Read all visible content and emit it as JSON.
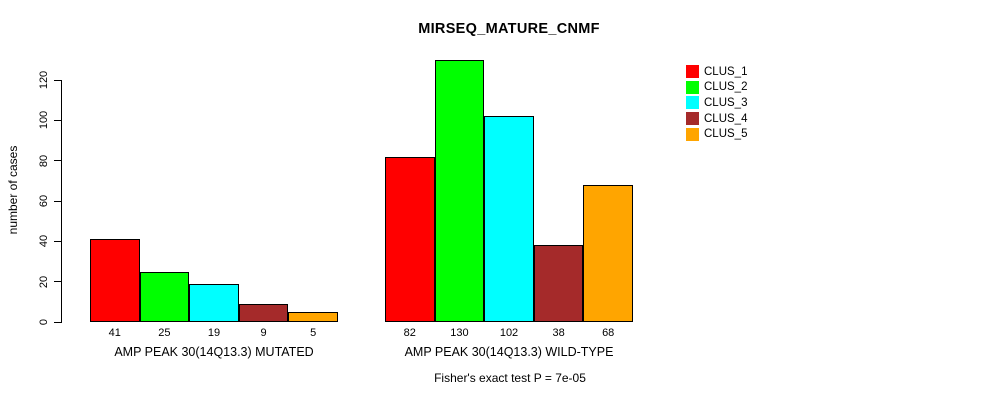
{
  "title": "MIRSEQ_MATURE_CNMF",
  "annotation": "Fisher's exact test P = 7e-05",
  "y_axis": {
    "label": "number of cases",
    "ticks": [
      0,
      20,
      40,
      60,
      80,
      100,
      120
    ]
  },
  "legend": {
    "position": "top-right",
    "items": [
      {
        "label": "CLUS_1",
        "color": "#FF0000"
      },
      {
        "label": "CLUS_2",
        "color": "#00FF00"
      },
      {
        "label": "CLUS_3",
        "color": "#00FFFF"
      },
      {
        "label": "CLUS_4",
        "color": "#A52A2A"
      },
      {
        "label": "CLUS_5",
        "color": "#FFA500"
      }
    ]
  },
  "chart_data": {
    "type": "bar",
    "title": "MIRSEQ_MATURE_CNMF",
    "xlabel": "",
    "ylabel": "number of cases",
    "ylim": [
      0,
      130
    ],
    "yticks": [
      0,
      20,
      40,
      60,
      80,
      100,
      120
    ],
    "grid": false,
    "legend_position": "top-right",
    "bar_value_labels": true,
    "categories": [
      "AMP PEAK 30(14Q13.3) MUTATED",
      "AMP PEAK 30(14Q13.3) WILD-TYPE"
    ],
    "series": [
      {
        "name": "CLUS_1",
        "color": "#FF0000",
        "values": [
          41,
          82
        ]
      },
      {
        "name": "CLUS_2",
        "color": "#00FF00",
        "values": [
          25,
          130
        ]
      },
      {
        "name": "CLUS_3",
        "color": "#00FFFF",
        "values": [
          19,
          102
        ]
      },
      {
        "name": "CLUS_4",
        "color": "#A52A2A",
        "values": [
          9,
          38
        ]
      },
      {
        "name": "CLUS_5",
        "color": "#FFA500",
        "values": [
          5,
          68
        ]
      }
    ],
    "annotation": "Fisher's exact test P = 7e-05"
  }
}
